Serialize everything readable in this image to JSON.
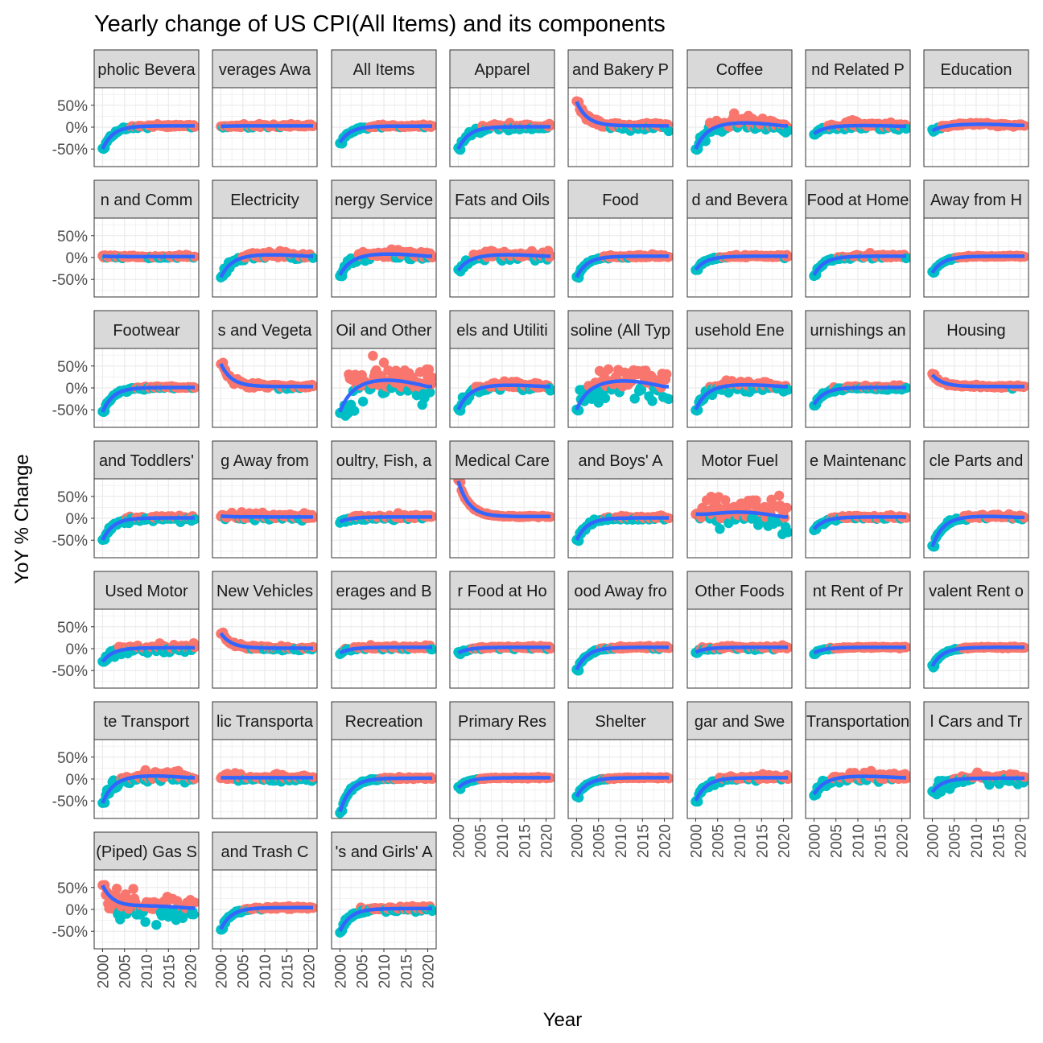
{
  "chart_data": {
    "type": "scatter",
    "title": "Yearly change of US CPI(All Items) and its components",
    "xlabel": "Year",
    "ylabel": "YoY % Change",
    "x_ticks": [
      "2000",
      "2005",
      "2010",
      "2015",
      "2020"
    ],
    "y_ticks": [
      "50%",
      "0%",
      "-50%"
    ],
    "xlim": [
      1999,
      2021
    ],
    "ylim": [
      -90,
      90
    ],
    "grid": true,
    "legend": "none",
    "overlays": [
      "points (red = positive change, teal = negative change)",
      "smoothed trend line (blue)"
    ],
    "colors": {
      "positive": "#F8766D",
      "negative": "#00BFC4",
      "trend": "#3366FF",
      "strip": "#D9D9D9",
      "grid": "#EBEBEB"
    },
    "panels": [
      {
        "label": "pholic Bevera",
        "start": -50,
        "base": 3,
        "amp": 2,
        "peak": 0
      },
      {
        "label": "verages Awa",
        "start": 2,
        "base": 3,
        "amp": 2,
        "peak": 0
      },
      {
        "label": "All Items",
        "start": -35,
        "base": 2.5,
        "amp": 2,
        "peak": 0
      },
      {
        "label": "Apparel",
        "start": -50,
        "base": 1,
        "amp": 4,
        "peak": 0
      },
      {
        "label": "and Bakery P",
        "start": 58,
        "base": 3,
        "amp": 5,
        "peak": 0
      },
      {
        "label": "Coffee",
        "start": -50,
        "base": 3,
        "amp": 9,
        "peak": 8
      },
      {
        "label": "nd Related P",
        "start": -15,
        "base": 2,
        "amp": 6,
        "peak": 2
      },
      {
        "label": "Education",
        "start": -8,
        "base": 4,
        "amp": 2,
        "peak": 3
      },
      {
        "label": "n and Comm",
        "start": 3,
        "base": 2,
        "amp": 2,
        "peak": 0
      },
      {
        "label": "Electricity",
        "start": -45,
        "base": 3,
        "amp": 5,
        "peak": 4
      },
      {
        "label": "nergy Service",
        "start": -40,
        "base": 3,
        "amp": 7,
        "peak": 6
      },
      {
        "label": "Fats and Oils",
        "start": -30,
        "base": 3,
        "amp": 6,
        "peak": 4
      },
      {
        "label": "Food",
        "start": -45,
        "base": 3,
        "amp": 2,
        "peak": 0
      },
      {
        "label": "d and Bevera",
        "start": -28,
        "base": 3,
        "amp": 2,
        "peak": 0
      },
      {
        "label": "Food at Home",
        "start": -40,
        "base": 3,
        "amp": 3,
        "peak": 0
      },
      {
        "label": "Away from H",
        "start": -35,
        "base": 3,
        "amp": 1,
        "peak": 0
      },
      {
        "label": "Footwear",
        "start": -55,
        "base": 1,
        "amp": 2,
        "peak": 0
      },
      {
        "label": "s and Vegeta",
        "start": 55,
        "base": 3,
        "amp": 4,
        "peak": 0
      },
      {
        "label": "Oil and Other",
        "start": -55,
        "base": 3,
        "amp": 25,
        "peak": 17
      },
      {
        "label": "els and Utiliti",
        "start": -50,
        "base": 3,
        "amp": 6,
        "peak": 4
      },
      {
        "label": "soline (All Typ",
        "start": -50,
        "base": 3,
        "amp": 22,
        "peak": 15
      },
      {
        "label": "usehold Ene",
        "start": -50,
        "base": 3,
        "amp": 8,
        "peak": 5
      },
      {
        "label": "urnishings an",
        "start": -38,
        "base": 1,
        "amp": 3,
        "peak": 0
      },
      {
        "label": "Housing",
        "start": 30,
        "base": 3,
        "amp": 2,
        "peak": 0
      },
      {
        "label": "and Toddlers'",
        "start": -50,
        "base": 1,
        "amp": 4,
        "peak": 0
      },
      {
        "label": "g Away from",
        "start": 5,
        "base": 3,
        "amp": 5,
        "peak": 0
      },
      {
        "label": "oultry, Fish, a",
        "start": -8,
        "base": 3,
        "amp": 4,
        "peak": 0
      },
      {
        "label": "Medical Care",
        "start": 85,
        "base": 4,
        "amp": 1,
        "peak": 0
      },
      {
        "label": "and Boys' A",
        "start": -50,
        "base": 1,
        "amp": 3,
        "peak": 0
      },
      {
        "label": "Motor Fuel",
        "start": 10,
        "base": 3,
        "amp": 22,
        "peak": 12
      },
      {
        "label": "e Maintenanc",
        "start": -25,
        "base": 3,
        "amp": 3,
        "peak": 0
      },
      {
        "label": "cle Parts and",
        "start": -65,
        "base": 2,
        "amp": 3,
        "peak": 3
      },
      {
        "label": "Used Motor",
        "start": -30,
        "base": 2,
        "amp": 6,
        "peak": 0
      },
      {
        "label": "New Vehicles",
        "start": 35,
        "base": 1,
        "amp": 3,
        "peak": 0
      },
      {
        "label": "erages and B",
        "start": -10,
        "base": 3,
        "amp": 3,
        "peak": 0
      },
      {
        "label": "r Food at Ho",
        "start": -10,
        "base": 3,
        "amp": 2,
        "peak": 0
      },
      {
        "label": "ood Away fro",
        "start": -48,
        "base": 3,
        "amp": 2,
        "peak": 0
      },
      {
        "label": "Other Foods",
        "start": -8,
        "base": 3,
        "amp": 3,
        "peak": 0
      },
      {
        "label": "nt Rent of Pr",
        "start": -10,
        "base": 3,
        "amp": 1,
        "peak": 0
      },
      {
        "label": "valent Rent o",
        "start": -40,
        "base": 3,
        "amp": 1,
        "peak": 0
      },
      {
        "label": "te Transport",
        "start": -55,
        "base": 3,
        "amp": 8,
        "peak": 5
      },
      {
        "label": "lic Transporta",
        "start": 3,
        "base": 3,
        "amp": 6,
        "peak": 0
      },
      {
        "label": "Recreation",
        "start": -75,
        "base": 2,
        "amp": 2,
        "peak": 0
      },
      {
        "label": "Primary Res",
        "start": -20,
        "base": 3,
        "amp": 1,
        "peak": 0
      },
      {
        "label": "Shelter",
        "start": -40,
        "base": 3,
        "amp": 1,
        "peak": 0
      },
      {
        "label": "gar and Swe",
        "start": -50,
        "base": 3,
        "amp": 4,
        "peak": 0
      },
      {
        "label": "Transportation",
        "start": -35,
        "base": 3,
        "amp": 7,
        "peak": 4
      },
      {
        "label": "l Cars and Tr",
        "start": -30,
        "base": 2,
        "amp": 8,
        "peak": 0
      },
      {
        "label": "(Piped) Gas S",
        "start": 55,
        "base": 3,
        "amp": 20,
        "peak": 5
      },
      {
        "label": "and Trash C",
        "start": -45,
        "base": 4,
        "amp": 2,
        "peak": 0
      },
      {
        "label": "'s and Girls' A",
        "start": -50,
        "base": 2,
        "amp": 4,
        "peak": 0
      }
    ]
  }
}
